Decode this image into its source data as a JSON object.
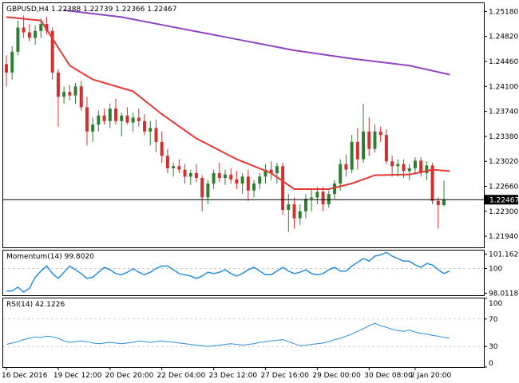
{
  "header": {
    "symbol": "GBPUSD,H4",
    "ohlc": "1.22388 1.22739 1.22366 1.22467"
  },
  "colors": {
    "bull": "#2e7d32",
    "bear": "#d32f2f",
    "ma_fast": "#e53935",
    "ma_slow": "#8e44c0",
    "indicator": "#2b8fd8",
    "grid": "#cfcfcf",
    "frame": "#000000"
  },
  "chart_data": [
    {
      "type": "candlestick",
      "pane": "main",
      "ylim": [
        1.2178,
        1.253
      ],
      "y_ticks": [
        "1.25180",
        "1.24820",
        "1.24460",
        "1.24100",
        "1.23740",
        "1.23380",
        "1.23020",
        "1.22660",
        "1.22300",
        "1.21940"
      ],
      "y_tick_values": [
        1.2518,
        1.2482,
        1.2446,
        1.241,
        1.2374,
        1.2338,
        1.2302,
        1.2266,
        1.223,
        1.2194
      ],
      "current_price_label": "1.22467",
      "current_price": 1.22467,
      "x_labels": [
        "16 Dec 2016",
        "19 Dec 12:00",
        "20 Dec 20:00",
        "22 Dec 04:00",
        "23 Dec 12:00",
        "27 Dec 16:00",
        "29 Dec 00:00",
        "30 Dec 08:00",
        "2 Jan 20:00"
      ],
      "candles_ohlc": [
        [
          1.2442,
          1.2455,
          1.241,
          1.243
        ],
        [
          1.243,
          1.2468,
          1.242,
          1.246
        ],
        [
          1.246,
          1.2505,
          1.2455,
          1.2495
        ],
        [
          1.2495,
          1.2512,
          1.248,
          1.2488
        ],
        [
          1.2488,
          1.25,
          1.2475,
          1.248
        ],
        [
          1.248,
          1.2498,
          1.247,
          1.249
        ],
        [
          1.249,
          1.2508,
          1.248,
          1.25
        ],
        [
          1.25,
          1.251,
          1.2485,
          1.249
        ],
        [
          1.249,
          1.2495,
          1.242,
          1.243
        ],
        [
          1.243,
          1.2435,
          1.2352,
          1.2395
        ],
        [
          1.2395,
          1.241,
          1.2385,
          1.2402
        ],
        [
          1.2402,
          1.2412,
          1.239,
          1.2397
        ],
        [
          1.2397,
          1.2415,
          1.2385,
          1.241
        ],
        [
          1.241,
          1.2418,
          1.2375,
          1.238
        ],
        [
          1.238,
          1.2395,
          1.2325,
          1.2345
        ],
        [
          1.2345,
          1.2365,
          1.233,
          1.2355
        ],
        [
          1.2355,
          1.2375,
          1.2345,
          1.2368
        ],
        [
          1.2368,
          1.2378,
          1.2355,
          1.236
        ],
        [
          1.236,
          1.2385,
          1.235,
          1.2378
        ],
        [
          1.2378,
          1.2392,
          1.2355,
          1.236
        ],
        [
          1.236,
          1.2372,
          1.2338,
          1.2368
        ],
        [
          1.2368,
          1.238,
          1.2355,
          1.2358
        ],
        [
          1.2358,
          1.2372,
          1.2345,
          1.2365
        ],
        [
          1.2365,
          1.2378,
          1.2352,
          1.236
        ],
        [
          1.236,
          1.237,
          1.234,
          1.2345
        ],
        [
          1.2345,
          1.236,
          1.2325,
          1.235
        ],
        [
          1.235,
          1.2362,
          1.2315,
          1.233
        ],
        [
          1.233,
          1.2345,
          1.23,
          1.231
        ],
        [
          1.231,
          1.232,
          1.2285,
          1.2292
        ],
        [
          1.2292,
          1.23,
          1.228,
          1.2295
        ],
        [
          1.2295,
          1.2305,
          1.2285,
          1.229
        ],
        [
          1.229,
          1.2298,
          1.227,
          1.228
        ],
        [
          1.228,
          1.229,
          1.2268,
          1.2285
        ],
        [
          1.2285,
          1.2298,
          1.2272,
          1.2278
        ],
        [
          1.2278,
          1.2282,
          1.223,
          1.225
        ],
        [
          1.225,
          1.2275,
          1.224,
          1.227
        ],
        [
          1.227,
          1.229,
          1.2262,
          1.2285
        ],
        [
          1.2285,
          1.23,
          1.2272,
          1.2278
        ],
        [
          1.2278,
          1.229,
          1.2268,
          1.2283
        ],
        [
          1.2283,
          1.2292,
          1.227,
          1.2276
        ],
        [
          1.2276,
          1.2288,
          1.2262,
          1.227
        ],
        [
          1.227,
          1.2285,
          1.2255,
          1.228
        ],
        [
          1.228,
          1.229,
          1.2245,
          1.226
        ],
        [
          1.226,
          1.2275,
          1.225,
          1.227
        ],
        [
          1.227,
          1.2285,
          1.2262,
          1.228
        ],
        [
          1.228,
          1.2298,
          1.227,
          1.229
        ],
        [
          1.229,
          1.2302,
          1.2275,
          1.2285
        ],
        [
          1.2285,
          1.23,
          1.227,
          1.2295
        ],
        [
          1.2295,
          1.23,
          1.2225,
          1.2232
        ],
        [
          1.2232,
          1.2255,
          1.22,
          1.224
        ],
        [
          1.224,
          1.225,
          1.2205,
          1.222
        ],
        [
          1.222,
          1.224,
          1.221,
          1.223
        ],
        [
          1.223,
          1.2255,
          1.222,
          1.2248
        ],
        [
          1.2248,
          1.2262,
          1.223,
          1.225
        ],
        [
          1.225,
          1.2265,
          1.224,
          1.2258
        ],
        [
          1.2258,
          1.2265,
          1.223,
          1.224
        ],
        [
          1.224,
          1.226,
          1.2235,
          1.2255
        ],
        [
          1.2255,
          1.2275,
          1.2248,
          1.227
        ],
        [
          1.227,
          1.2305,
          1.226,
          1.2298
        ],
        [
          1.2298,
          1.2312,
          1.228,
          1.229
        ],
        [
          1.229,
          1.234,
          1.2285,
          1.233
        ],
        [
          1.233,
          1.235,
          1.229,
          1.2305
        ],
        [
          1.2305,
          1.2385,
          1.23,
          1.2345
        ],
        [
          1.2345,
          1.2365,
          1.231,
          1.232
        ],
        [
          1.232,
          1.2355,
          1.2315,
          1.2345
        ],
        [
          1.2345,
          1.2352,
          1.233,
          1.234
        ],
        [
          1.234,
          1.2348,
          1.2298,
          1.2302
        ],
        [
          1.2302,
          1.231,
          1.228,
          1.2295
        ],
        [
          1.2295,
          1.2305,
          1.228,
          1.2298
        ],
        [
          1.2298,
          1.2305,
          1.2278,
          1.2288
        ],
        [
          1.2288,
          1.2298,
          1.2275,
          1.2292
        ],
        [
          1.2292,
          1.2308,
          1.2285,
          1.2303
        ],
        [
          1.2303,
          1.2308,
          1.228,
          1.2285
        ],
        [
          1.2285,
          1.2302,
          1.2275,
          1.2296
        ],
        [
          1.2296,
          1.23,
          1.224,
          1.2245
        ],
        [
          1.2245,
          1.225,
          1.2205,
          1.2239
        ],
        [
          1.2239,
          1.2274,
          1.2237,
          1.2247
        ]
      ],
      "overlays": [
        {
          "kind": "moving-average-fast",
          "points": [
            [
              0,
              1.251
            ],
            [
              6,
              1.2505
            ],
            [
              11,
              1.244
            ],
            [
              15,
              1.242
            ],
            [
              22,
              1.2403
            ],
            [
              27,
              1.237
            ],
            [
              33,
              1.2335
            ],
            [
              40,
              1.2305
            ],
            [
              46,
              1.2285
            ],
            [
              50,
              1.2262
            ],
            [
              56,
              1.2262
            ],
            [
              60,
              1.227
            ],
            [
              64,
              1.2282
            ],
            [
              70,
              1.2283
            ],
            [
              74,
              1.229
            ],
            [
              77,
              1.2288
            ]
          ]
        },
        {
          "kind": "moving-average-slow",
          "points": [
            [
              10,
              1.252
            ],
            [
              20,
              1.251
            ],
            [
              30,
              1.2494
            ],
            [
              40,
              1.2478
            ],
            [
              50,
              1.2462
            ],
            [
              60,
              1.245
            ],
            [
              70,
              1.244
            ],
            [
              77,
              1.2427
            ]
          ]
        }
      ]
    },
    {
      "type": "line",
      "pane": "momentum",
      "name": "Momentum(14) 99.8020",
      "ylim": [
        97.85,
        101.45
      ],
      "y_ticks": [
        "101.1629",
        "100",
        "98.0118"
      ],
      "y_tick_values": [
        101.1629,
        100,
        98.0118
      ],
      "values": [
        98.2,
        98.2,
        98.5,
        98.1,
        98.4,
        99.3,
        99.8,
        100.2,
        99.6,
        99.2,
        99.7,
        100.2,
        99.9,
        99.6,
        99.2,
        99.3,
        99.7,
        100.1,
        99.9,
        99.6,
        99.5,
        99.7,
        100.0,
        99.7,
        99.5,
        99.7,
        100.0,
        100.2,
        100.2,
        99.9,
        99.6,
        99.5,
        99.4,
        99.2,
        99.4,
        99.7,
        99.6,
        99.7,
        99.9,
        99.6,
        99.4,
        99.6,
        99.9,
        100.1,
        99.8,
        99.5,
        99.5,
        99.8,
        100.1,
        99.8,
        99.6,
        99.7,
        99.9,
        99.6,
        99.5,
        99.6,
        99.9,
        100.1,
        99.8,
        99.8,
        100.2,
        100.5,
        100.8,
        100.6,
        101.0,
        101.1,
        101.3,
        101.0,
        100.8,
        100.6,
        100.6,
        100.3,
        100.1,
        100.4,
        100.3,
        99.9,
        99.6,
        99.8
      ]
    },
    {
      "type": "line",
      "pane": "rsi",
      "name": "RSI(14) 42.1226",
      "ylim": [
        0,
        100
      ],
      "y_ticks": [
        "100",
        "70",
        "30",
        "0"
      ],
      "y_tick_values": [
        100,
        70,
        30,
        0
      ],
      "values": [
        33,
        35,
        37,
        40,
        42,
        44,
        43,
        45,
        44,
        42,
        38,
        36,
        37,
        38,
        37,
        35,
        34,
        35,
        36,
        35,
        34,
        35,
        36,
        38,
        37,
        36,
        37,
        38,
        37,
        36,
        35,
        34,
        33,
        32,
        31,
        30,
        31,
        32,
        33,
        34,
        33,
        32,
        33,
        34,
        36,
        37,
        38,
        39,
        40,
        37,
        34,
        31,
        32,
        33,
        34,
        35,
        37,
        40,
        42,
        45,
        48,
        52,
        56,
        60,
        64,
        60,
        58,
        55,
        53,
        52,
        54,
        51,
        49,
        48,
        46,
        45,
        43,
        42
      ]
    }
  ]
}
